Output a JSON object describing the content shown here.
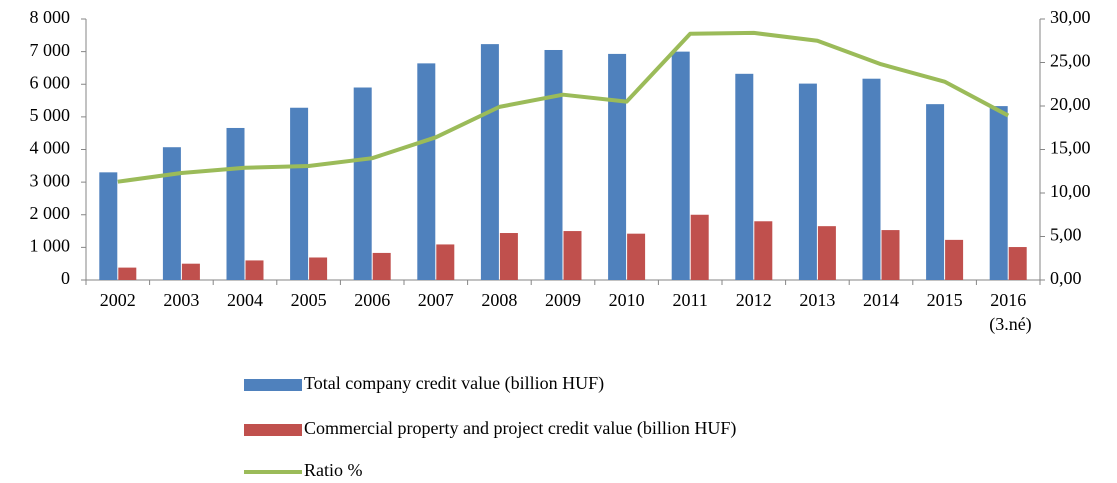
{
  "chart_data": {
    "type": "bar_line",
    "categories": [
      "2002",
      "2003",
      "2004",
      "2005",
      "2006",
      "2007",
      "2008",
      "2009",
      "2010",
      "2011",
      "2012",
      "2013",
      "2014",
      "2015",
      "2016 (3.né)"
    ],
    "series": [
      {
        "name": "Total company credit value (billion HUF)",
        "type": "bar",
        "color": "#4f81bd",
        "values": [
          3300,
          4070,
          4660,
          5280,
          5900,
          6640,
          7230,
          7050,
          6930,
          7000,
          6320,
          6020,
          6170,
          5390,
          5330
        ]
      },
      {
        "name": "Commercial property and project credit value (billion HUF)",
        "type": "bar",
        "color": "#c0504d",
        "values": [
          380,
          500,
          600,
          690,
          830,
          1090,
          1440,
          1500,
          1420,
          2000,
          1800,
          1650,
          1530,
          1230,
          1010
        ]
      },
      {
        "name": "Ratio %",
        "type": "line",
        "axis": "y2",
        "color": "#9bbb59",
        "values": [
          11.3,
          12.3,
          12.9,
          13.1,
          14.0,
          16.4,
          19.9,
          21.3,
          20.5,
          28.3,
          28.4,
          27.5,
          24.8,
          22.8,
          18.9
        ]
      }
    ],
    "ylim": [
      0,
      8000
    ],
    "yticks": [
      0,
      {
        "value": 1000,
        "label": "1 000"
      },
      {
        "value": 2000,
        "label": "2 000"
      },
      {
        "value": 3000,
        "label": "3 000"
      },
      {
        "value": 4000,
        "label": "4 000"
      },
      {
        "value": 5000,
        "label": "5 000"
      },
      {
        "value": 6000,
        "label": "6 000"
      },
      {
        "value": 7000,
        "label": "7 000"
      },
      {
        "value": 8000,
        "label": "8 000"
      }
    ],
    "y2lim": [
      0,
      30
    ],
    "y2ticks": [
      {
        "value": 0,
        "label": "0,00"
      },
      {
        "value": 5,
        "label": "5,00"
      },
      {
        "value": 10,
        "label": "10,00"
      },
      {
        "value": 15,
        "label": "15,00"
      },
      {
        "value": 20,
        "label": "20,00"
      },
      {
        "value": 25,
        "label": "25,00"
      },
      {
        "value": 30,
        "label": "30,00"
      }
    ],
    "grid": false,
    "legend": "bottom"
  }
}
